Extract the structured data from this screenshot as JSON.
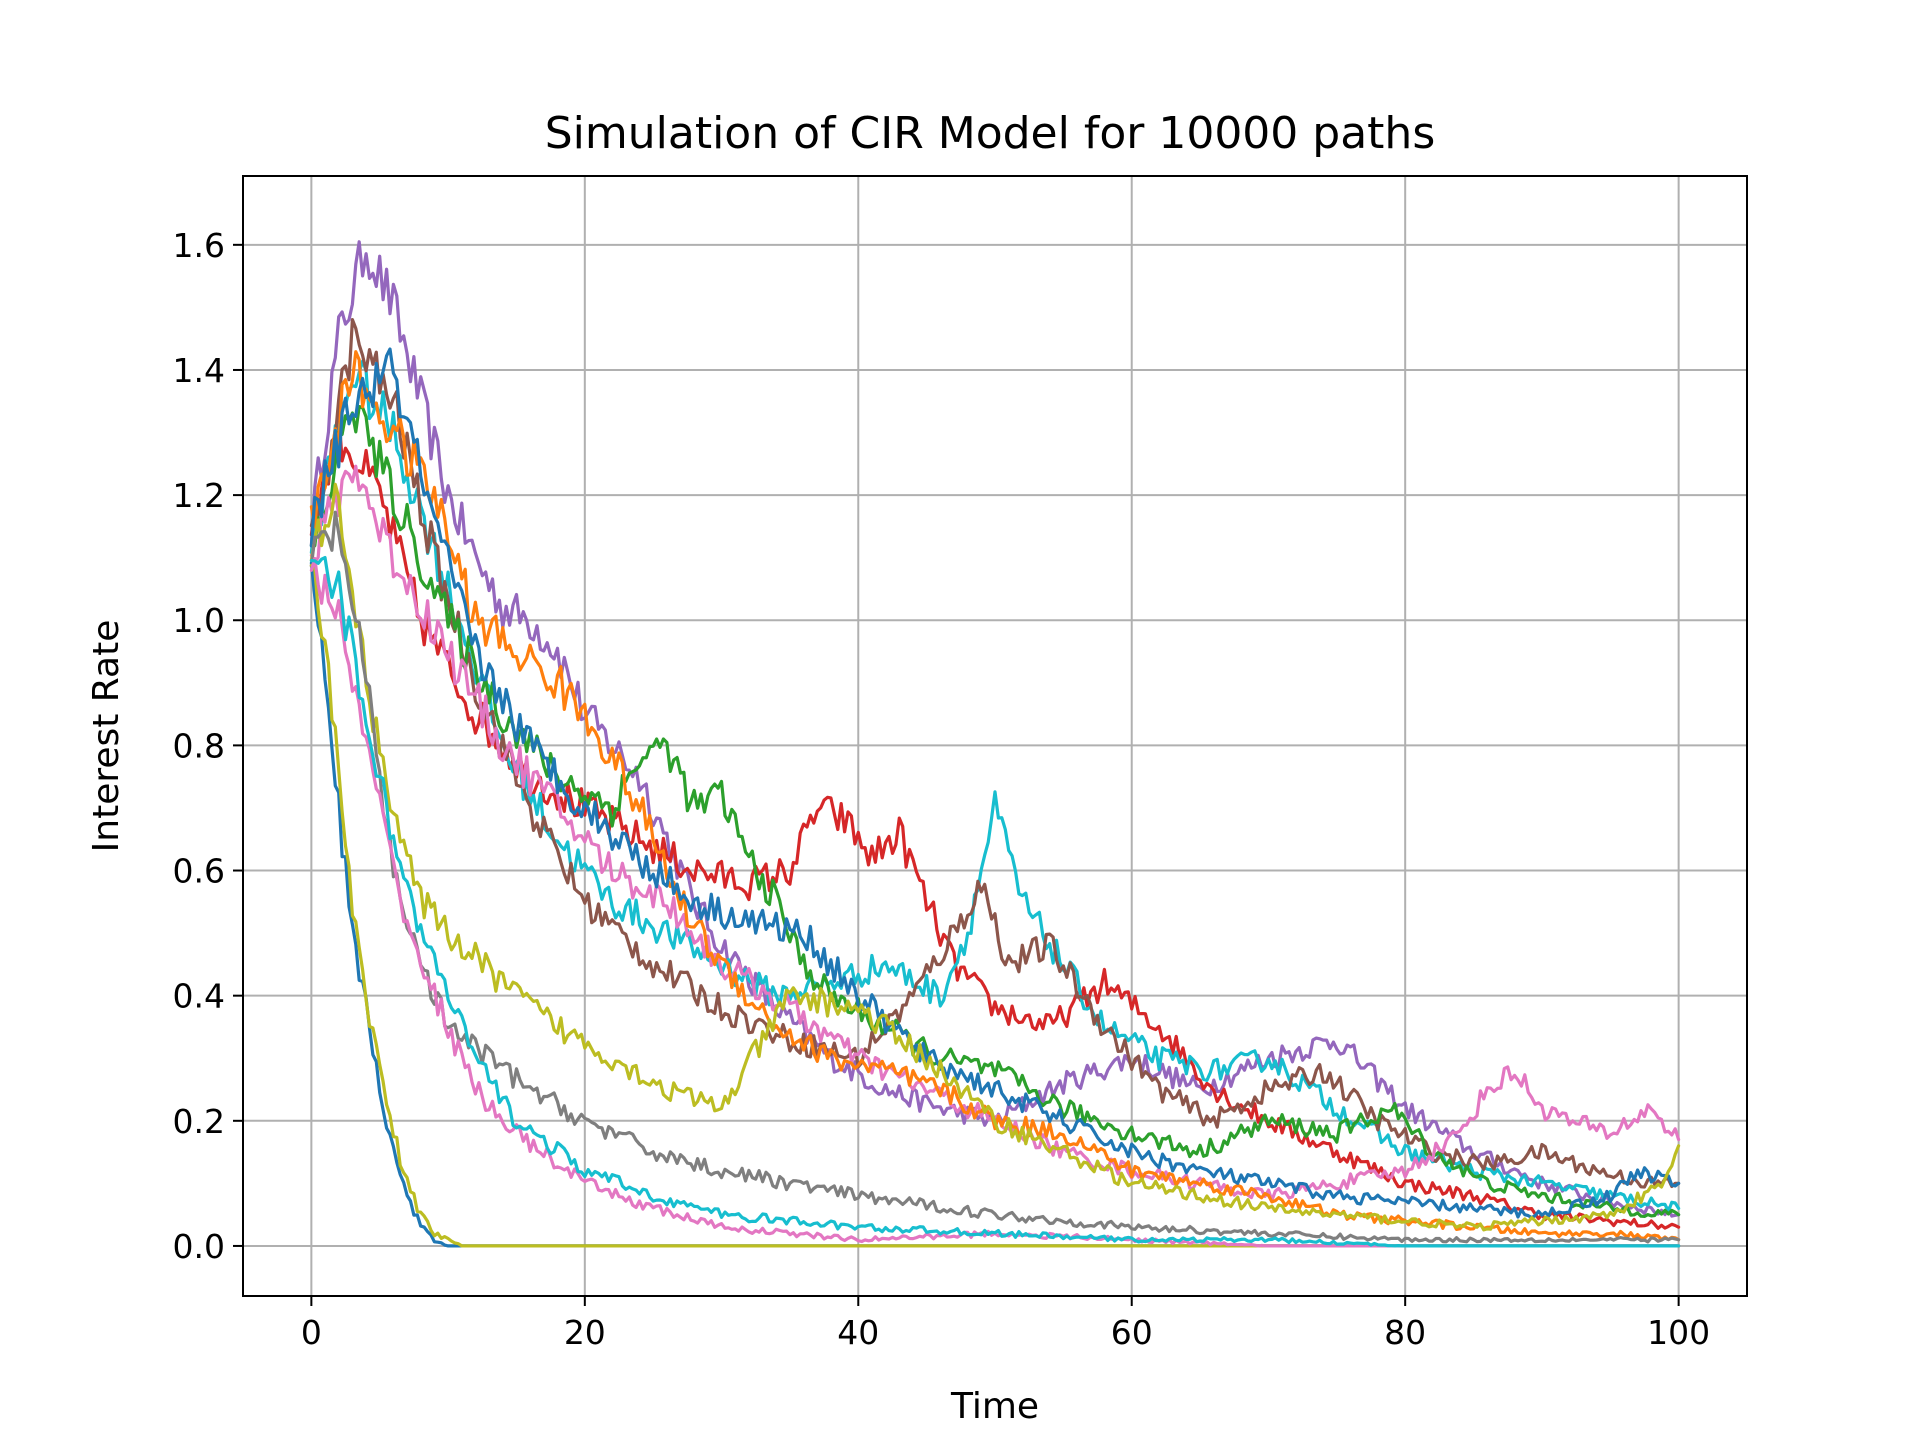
{
  "chart_data": {
    "type": "line",
    "title": "Simulation of CIR Model for 10000 paths",
    "xlabel": "Time",
    "ylabel": "Interest Rate",
    "xlim": [
      -5,
      105
    ],
    "ylim": [
      -0.08,
      1.71
    ],
    "xticks": [
      0,
      20,
      40,
      60,
      80,
      100
    ],
    "xtick_labels": [
      "0",
      "20",
      "40",
      "60",
      "80",
      "100"
    ],
    "yticks": [
      0.0,
      0.2,
      0.4,
      0.6,
      0.8,
      1.0,
      1.2,
      1.4,
      1.6
    ],
    "ytick_labels": [
      "0.0",
      "0.2",
      "0.4",
      "0.6",
      "0.8",
      "1.0",
      "1.2",
      "1.4",
      "1.6"
    ],
    "grid": true,
    "legend": "none",
    "colors": [
      "#1f77b4",
      "#ff7f0e",
      "#2ca02c",
      "#d62728",
      "#9467bd",
      "#8c564b",
      "#e377c2",
      "#7f7f7f",
      "#bcbd22",
      "#17becf"
    ],
    "series": [
      {
        "color": "#9467bd",
        "x": [
          0,
          2,
          4,
          6,
          8,
          10,
          12,
          14,
          16,
          18,
          20,
          22,
          24,
          26,
          28,
          30,
          34,
          38,
          42,
          46,
          50,
          55,
          60,
          65,
          70,
          75,
          80,
          85,
          90,
          95,
          100
        ],
        "y": [
          1.15,
          1.45,
          1.6,
          1.5,
          1.35,
          1.2,
          1.1,
          1.02,
          1.0,
          0.95,
          0.85,
          0.8,
          0.75,
          0.65,
          0.55,
          0.48,
          0.38,
          0.3,
          0.25,
          0.22,
          0.2,
          0.26,
          0.3,
          0.25,
          0.3,
          0.33,
          0.22,
          0.15,
          0.1,
          0.07,
          0.05
        ]
      },
      {
        "color": "#d62728",
        "x": [
          0,
          2,
          5,
          8,
          12,
          16,
          20,
          24,
          28,
          32,
          35,
          37,
          39,
          41,
          43,
          45,
          47,
          50,
          54,
          58,
          62,
          66,
          70,
          75,
          80,
          85,
          90,
          95,
          100
        ],
        "y": [
          1.15,
          1.3,
          1.2,
          1.0,
          0.85,
          0.75,
          0.7,
          0.65,
          0.6,
          0.58,
          0.6,
          0.7,
          0.68,
          0.62,
          0.66,
          0.55,
          0.45,
          0.38,
          0.35,
          0.42,
          0.35,
          0.25,
          0.2,
          0.15,
          0.1,
          0.08,
          0.05,
          0.04,
          0.03
        ]
      },
      {
        "color": "#17becf",
        "x": [
          0,
          3,
          6,
          10,
          14,
          18,
          22,
          26,
          30,
          34,
          38,
          42,
          46,
          48,
          50,
          52,
          55,
          58,
          62,
          66,
          70,
          75,
          80,
          85,
          90,
          95,
          100
        ],
        "y": [
          1.12,
          1.4,
          1.3,
          1.05,
          0.8,
          0.65,
          0.55,
          0.5,
          0.45,
          0.4,
          0.42,
          0.45,
          0.4,
          0.5,
          0.7,
          0.55,
          0.45,
          0.35,
          0.3,
          0.28,
          0.3,
          0.22,
          0.15,
          0.12,
          0.1,
          0.08,
          0.06
        ]
      },
      {
        "color": "#8c564b",
        "x": [
          0,
          3,
          6,
          9,
          12,
          16,
          20,
          25,
          30,
          35,
          40,
          44,
          47,
          49,
          51,
          54,
          58,
          62,
          66,
          70,
          74,
          78,
          82,
          86,
          90,
          94,
          98,
          100
        ],
        "y": [
          1.12,
          1.45,
          1.35,
          1.1,
          0.9,
          0.7,
          0.55,
          0.45,
          0.38,
          0.33,
          0.3,
          0.4,
          0.5,
          0.58,
          0.45,
          0.48,
          0.35,
          0.25,
          0.2,
          0.25,
          0.28,
          0.2,
          0.15,
          0.13,
          0.15,
          0.12,
          0.1,
          0.1
        ]
      },
      {
        "color": "#2ca02c",
        "x": [
          0,
          3,
          6,
          10,
          14,
          18,
          22,
          24,
          26,
          28,
          30,
          32,
          34,
          36,
          38,
          42,
          46,
          50,
          55,
          60,
          65,
          70,
          75,
          79,
          82,
          86,
          90,
          95,
          100
        ],
        "y": [
          1.1,
          1.35,
          1.2,
          1.0,
          0.85,
          0.75,
          0.7,
          0.78,
          0.8,
          0.7,
          0.72,
          0.62,
          0.55,
          0.45,
          0.4,
          0.35,
          0.3,
          0.28,
          0.22,
          0.18,
          0.15,
          0.2,
          0.18,
          0.22,
          0.15,
          0.1,
          0.08,
          0.06,
          0.05
        ]
      },
      {
        "color": "#e377c2",
        "x": [
          0,
          3,
          6,
          10,
          14,
          18,
          22,
          26,
          30,
          35,
          40,
          45,
          50,
          55,
          60,
          65,
          70,
          75,
          80,
          84,
          86,
          88,
          90,
          92,
          95,
          98,
          100
        ],
        "y": [
          1.1,
          1.25,
          1.1,
          0.95,
          0.8,
          0.7,
          0.6,
          0.55,
          0.45,
          0.38,
          0.3,
          0.25,
          0.2,
          0.15,
          0.12,
          0.1,
          0.08,
          0.1,
          0.12,
          0.18,
          0.25,
          0.28,
          0.22,
          0.2,
          0.18,
          0.22,
          0.17
        ]
      },
      {
        "color": "#ff7f0e",
        "x": [
          0,
          3,
          6,
          9,
          12,
          15,
          18,
          21,
          24,
          27,
          30,
          34,
          38,
          42,
          46,
          50,
          55,
          60,
          65,
          70,
          75,
          80,
          85,
          90,
          95,
          100
        ],
        "y": [
          1.15,
          1.4,
          1.3,
          1.2,
          1.0,
          0.95,
          0.9,
          0.82,
          0.7,
          0.55,
          0.45,
          0.35,
          0.3,
          0.28,
          0.25,
          0.2,
          0.18,
          0.12,
          0.1,
          0.08,
          0.05,
          0.04,
          0.03,
          0.02,
          0.02,
          0.01
        ]
      },
      {
        "color": "#1f77b4",
        "x": [
          0,
          3,
          6,
          9,
          12,
          16,
          20,
          24,
          28,
          32,
          36,
          40,
          45,
          50,
          55,
          60,
          65,
          70,
          75,
          80,
          85,
          90,
          95,
          97,
          100
        ],
        "y": [
          1.15,
          1.35,
          1.4,
          1.15,
          0.95,
          0.8,
          0.7,
          0.62,
          0.55,
          0.52,
          0.5,
          0.4,
          0.3,
          0.25,
          0.2,
          0.15,
          0.12,
          0.1,
          0.08,
          0.07,
          0.06,
          0.05,
          0.08,
          0.12,
          0.1
        ]
      },
      {
        "color": "#bcbd22",
        "x": [
          0,
          2,
          4,
          6,
          8,
          10,
          14,
          18,
          22,
          26,
          30,
          35,
          40,
          45,
          50,
          55,
          60,
          65,
          70,
          75,
          80,
          85,
          90,
          95,
          99,
          100
        ],
        "y": [
          1.1,
          1.2,
          0.9,
          0.7,
          0.55,
          0.5,
          0.42,
          0.35,
          0.3,
          0.25,
          0.22,
          0.4,
          0.38,
          0.3,
          0.2,
          0.15,
          0.1,
          0.08,
          0.06,
          0.05,
          0.04,
          0.03,
          0.04,
          0.05,
          0.1,
          0.16
        ]
      },
      {
        "color": "#7f7f7f",
        "x": [
          0,
          2,
          4,
          6,
          8,
          10,
          13,
          16,
          20,
          25,
          30,
          35,
          40,
          50,
          60,
          70,
          80,
          90,
          100
        ],
        "y": [
          1.1,
          1.15,
          0.9,
          0.6,
          0.45,
          0.35,
          0.3,
          0.25,
          0.2,
          0.15,
          0.12,
          0.1,
          0.08,
          0.05,
          0.03,
          0.02,
          0.01,
          0.01,
          0.01
        ]
      },
      {
        "color": "#1f77b4",
        "x": [
          0,
          1,
          2,
          3,
          4,
          5,
          6,
          7,
          8,
          9,
          10,
          12,
          20,
          40,
          60,
          80,
          100
        ],
        "y": [
          1.1,
          0.9,
          0.7,
          0.5,
          0.38,
          0.25,
          0.15,
          0.08,
          0.03,
          0.01,
          0.0,
          0.0,
          0.0,
          0.0,
          0.0,
          0.0,
          0.0
        ]
      },
      {
        "color": "#bcbd22",
        "x": [
          0,
          1,
          2,
          3,
          4,
          5,
          6,
          7,
          8,
          9,
          11,
          13,
          20,
          40,
          60,
          80,
          100
        ],
        "y": [
          1.12,
          0.95,
          0.75,
          0.55,
          0.4,
          0.28,
          0.18,
          0.1,
          0.05,
          0.02,
          0.0,
          0.0,
          0.0,
          0.0,
          0.0,
          0.0,
          0.0
        ]
      },
      {
        "color": "#e377c2",
        "x": [
          0,
          2,
          4,
          6,
          8,
          10,
          12,
          15,
          20,
          25,
          30,
          40,
          50,
          60,
          70,
          80,
          90,
          100
        ],
        "y": [
          1.1,
          1.0,
          0.8,
          0.6,
          0.45,
          0.35,
          0.25,
          0.18,
          0.1,
          0.06,
          0.03,
          0.01,
          0.02,
          0.01,
          0.0,
          0.0,
          0.0,
          0.0
        ]
      },
      {
        "color": "#17becf",
        "x": [
          0,
          2,
          4,
          6,
          8,
          10,
          12,
          15,
          20,
          25,
          30,
          40,
          50,
          60,
          70,
          80,
          90,
          100
        ],
        "y": [
          1.12,
          1.05,
          0.85,
          0.65,
          0.5,
          0.4,
          0.3,
          0.2,
          0.12,
          0.08,
          0.05,
          0.03,
          0.02,
          0.01,
          0.01,
          0.0,
          0.0,
          0.0
        ]
      }
    ]
  }
}
